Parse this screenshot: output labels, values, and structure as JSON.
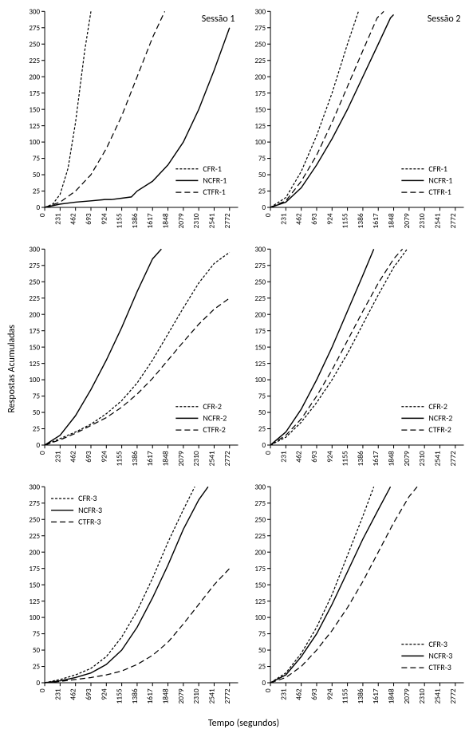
{
  "layout": {
    "rows": 3,
    "cols": 2,
    "background_color": "#ffffff",
    "text_color": "#000000",
    "ylabel": "Respostas Acumuladas",
    "xlabel": "Tempo (segundos)",
    "ylabel_fontsize": 12,
    "xlabel_fontsize": 12,
    "tick_fontsize": 9
  },
  "axes": {
    "ylim": [
      0,
      300
    ],
    "ytick_step": 25,
    "yticks": [
      0,
      25,
      50,
      75,
      100,
      125,
      150,
      175,
      200,
      225,
      250,
      275,
      300
    ],
    "xlim": [
      0,
      2900
    ],
    "xtick_step": 231,
    "xticks": [
      0,
      231,
      462,
      693,
      924,
      1155,
      1386,
      1617,
      1848,
      2079,
      2310,
      2541,
      2772
    ],
    "grid": false,
    "tick_color": "#000000",
    "axis_color": "#000000",
    "axis_width": 1,
    "tick_len": 4
  },
  "line_styles": {
    "CFR": {
      "color": "#000000",
      "width": 1.2,
      "dash": "3,2"
    },
    "NCFR": {
      "color": "#000000",
      "width": 1.4,
      "dash": ""
    },
    "CTFR": {
      "color": "#000000",
      "width": 1.2,
      "dash": "7,4"
    }
  },
  "session_titles": {
    "col0": "Sessão 1",
    "col1": "Sessão 2"
  },
  "legend": {
    "fontsize": 10,
    "line_len": 28,
    "line_gap": 14,
    "text_gap": 6
  },
  "panels": [
    {
      "id": "s1r1",
      "col_title": "Sessão 1",
      "legend_pos": "br",
      "legend_labels": [
        "CFR-1",
        "NCFR-1",
        "CTFR-1"
      ],
      "series": {
        "CFR": [
          [
            0,
            0
          ],
          [
            120,
            5
          ],
          [
            231,
            20
          ],
          [
            350,
            60
          ],
          [
            462,
            130
          ],
          [
            600,
            240
          ],
          [
            693,
            300
          ]
        ],
        "NCFR": [
          [
            0,
            0
          ],
          [
            231,
            5
          ],
          [
            462,
            8
          ],
          [
            693,
            10
          ],
          [
            900,
            12
          ],
          [
            1000,
            12
          ],
          [
            1155,
            14
          ],
          [
            1300,
            16
          ],
          [
            1386,
            25
          ],
          [
            1617,
            40
          ],
          [
            1848,
            65
          ],
          [
            2079,
            100
          ],
          [
            2310,
            150
          ],
          [
            2541,
            210
          ],
          [
            2772,
            275
          ]
        ],
        "CTFR": [
          [
            0,
            0
          ],
          [
            231,
            8
          ],
          [
            462,
            25
          ],
          [
            693,
            50
          ],
          [
            924,
            90
          ],
          [
            1155,
            140
          ],
          [
            1386,
            200
          ],
          [
            1617,
            260
          ],
          [
            1800,
            300
          ]
        ]
      }
    },
    {
      "id": "s2r1",
      "col_title": "Sessão 2",
      "legend_pos": "br",
      "legend_labels": [
        "CFR-1",
        "NCFR-1",
        "CTFR-1"
      ],
      "series": {
        "CFR": [
          [
            0,
            0
          ],
          [
            231,
            15
          ],
          [
            462,
            55
          ],
          [
            693,
            110
          ],
          [
            924,
            175
          ],
          [
            1155,
            250
          ],
          [
            1320,
            300
          ]
        ],
        "NCFR": [
          [
            0,
            0
          ],
          [
            231,
            8
          ],
          [
            462,
            30
          ],
          [
            693,
            65
          ],
          [
            924,
            105
          ],
          [
            1155,
            150
          ],
          [
            1386,
            200
          ],
          [
            1617,
            250
          ],
          [
            1800,
            290
          ],
          [
            1848,
            295
          ]
        ],
        "CTFR": [
          [
            0,
            0
          ],
          [
            231,
            10
          ],
          [
            462,
            40
          ],
          [
            693,
            80
          ],
          [
            924,
            130
          ],
          [
            1155,
            185
          ],
          [
            1386,
            240
          ],
          [
            1600,
            290
          ],
          [
            1700,
            300
          ]
        ]
      }
    },
    {
      "id": "s1r2",
      "legend_pos": "br",
      "legend_labels": [
        "CFR-2",
        "NCFR-2",
        "CTFR-2"
      ],
      "series": {
        "CFR": [
          [
            0,
            0
          ],
          [
            231,
            10
          ],
          [
            462,
            20
          ],
          [
            693,
            32
          ],
          [
            924,
            48
          ],
          [
            1155,
            68
          ],
          [
            1386,
            95
          ],
          [
            1617,
            130
          ],
          [
            1848,
            170
          ],
          [
            2079,
            210
          ],
          [
            2310,
            248
          ],
          [
            2541,
            278
          ],
          [
            2772,
            295
          ]
        ],
        "NCFR": [
          [
            0,
            0
          ],
          [
            231,
            15
          ],
          [
            462,
            45
          ],
          [
            693,
            85
          ],
          [
            924,
            130
          ],
          [
            1155,
            180
          ],
          [
            1386,
            235
          ],
          [
            1617,
            285
          ],
          [
            1750,
            300
          ]
        ],
        "CTFR": [
          [
            0,
            0
          ],
          [
            231,
            8
          ],
          [
            462,
            18
          ],
          [
            693,
            30
          ],
          [
            924,
            42
          ],
          [
            1155,
            58
          ],
          [
            1386,
            78
          ],
          [
            1617,
            102
          ],
          [
            1848,
            130
          ],
          [
            2079,
            158
          ],
          [
            2310,
            185
          ],
          [
            2541,
            208
          ],
          [
            2772,
            225
          ]
        ]
      }
    },
    {
      "id": "s2r2",
      "legend_pos": "br",
      "legend_labels": [
        "CFR-2",
        "NCFR-2",
        "CTFR-2"
      ],
      "series": {
        "CFR": [
          [
            0,
            0
          ],
          [
            231,
            12
          ],
          [
            462,
            35
          ],
          [
            693,
            65
          ],
          [
            924,
            100
          ],
          [
            1155,
            140
          ],
          [
            1386,
            185
          ],
          [
            1617,
            230
          ],
          [
            1848,
            272
          ],
          [
            2050,
            300
          ]
        ],
        "NCFR": [
          [
            0,
            0
          ],
          [
            231,
            20
          ],
          [
            462,
            55
          ],
          [
            693,
            100
          ],
          [
            924,
            150
          ],
          [
            1155,
            205
          ],
          [
            1386,
            260
          ],
          [
            1550,
            300
          ]
        ],
        "CTFR": [
          [
            0,
            0
          ],
          [
            231,
            15
          ],
          [
            462,
            40
          ],
          [
            693,
            75
          ],
          [
            924,
            115
          ],
          [
            1155,
            160
          ],
          [
            1386,
            205
          ],
          [
            1617,
            248
          ],
          [
            1848,
            285
          ],
          [
            1980,
            300
          ]
        ]
      }
    },
    {
      "id": "s1r3",
      "legend_pos": "tl",
      "legend_labels": [
        "CFR-3",
        "NCFR-3",
        "CTFR-3"
      ],
      "series": {
        "CFR": [
          [
            0,
            0
          ],
          [
            231,
            5
          ],
          [
            462,
            12
          ],
          [
            693,
            22
          ],
          [
            924,
            40
          ],
          [
            1155,
            70
          ],
          [
            1386,
            110
          ],
          [
            1617,
            160
          ],
          [
            1848,
            215
          ],
          [
            2079,
            265
          ],
          [
            2250,
            300
          ]
        ],
        "NCFR": [
          [
            0,
            0
          ],
          [
            231,
            3
          ],
          [
            462,
            8
          ],
          [
            693,
            15
          ],
          [
            924,
            28
          ],
          [
            1155,
            50
          ],
          [
            1386,
            85
          ],
          [
            1617,
            130
          ],
          [
            1848,
            180
          ],
          [
            2079,
            235
          ],
          [
            2310,
            280
          ],
          [
            2450,
            300
          ]
        ],
        "CTFR": [
          [
            0,
            0
          ],
          [
            231,
            2
          ],
          [
            462,
            5
          ],
          [
            693,
            8
          ],
          [
            924,
            12
          ],
          [
            1155,
            18
          ],
          [
            1386,
            28
          ],
          [
            1617,
            42
          ],
          [
            1848,
            62
          ],
          [
            2079,
            90
          ],
          [
            2310,
            120
          ],
          [
            2541,
            150
          ],
          [
            2772,
            175
          ]
        ]
      }
    },
    {
      "id": "s2r3",
      "legend_pos": "br",
      "legend_labels": [
        "CFR-3",
        "NCFR-3",
        "CTFR-3"
      ],
      "series": {
        "CFR": [
          [
            0,
            0
          ],
          [
            231,
            15
          ],
          [
            462,
            45
          ],
          [
            693,
            85
          ],
          [
            924,
            135
          ],
          [
            1155,
            195
          ],
          [
            1386,
            255
          ],
          [
            1550,
            300
          ]
        ],
        "NCFR": [
          [
            0,
            0
          ],
          [
            231,
            12
          ],
          [
            462,
            40
          ],
          [
            693,
            75
          ],
          [
            924,
            120
          ],
          [
            1155,
            170
          ],
          [
            1386,
            220
          ],
          [
            1617,
            265
          ],
          [
            1800,
            300
          ]
        ],
        "CTFR": [
          [
            0,
            0
          ],
          [
            231,
            8
          ],
          [
            462,
            25
          ],
          [
            693,
            50
          ],
          [
            924,
            80
          ],
          [
            1155,
            115
          ],
          [
            1386,
            155
          ],
          [
            1617,
            200
          ],
          [
            1848,
            245
          ],
          [
            2079,
            285
          ],
          [
            2200,
            300
          ]
        ]
      }
    }
  ]
}
